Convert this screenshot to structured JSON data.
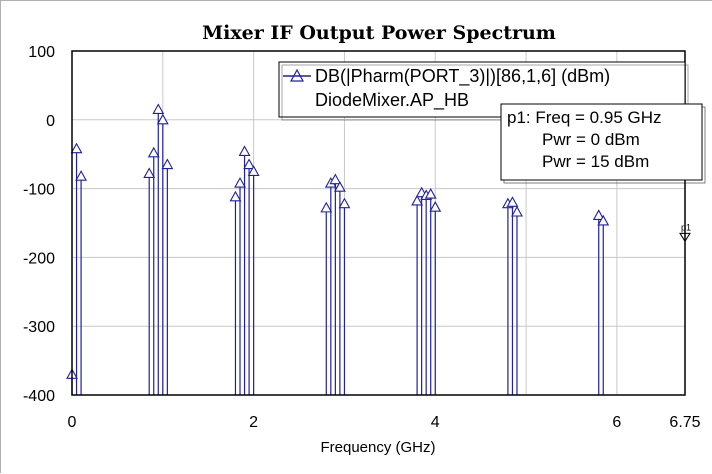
{
  "chart_data": {
    "type": "line",
    "title": "Mixer IF Output Power Spectrum",
    "xlabel": "Frequency (GHz)",
    "ylabel": "",
    "xlim": [
      0,
      6.75
    ],
    "ylim": [
      -400,
      100
    ],
    "x_ticks": [
      "0",
      "2",
      "4",
      "6",
      "6.75"
    ],
    "x_tick_values": [
      0,
      2,
      4,
      6,
      6.75
    ],
    "y_ticks": [
      "100",
      "0",
      "-100",
      "-200",
      "-300",
      "-400"
    ],
    "y_tick_values": [
      100,
      0,
      -100,
      -200,
      -300,
      -400
    ],
    "grid": true,
    "legend_position": "top-right",
    "series": [
      {
        "name": "DB(|Pharm(PORT_3)|)[86,1,6] (dBm)",
        "name_line2": "DiodeMixer.AP_HB",
        "color": "#1f1fa8",
        "style": "stem-with-triangle-markers",
        "x": [
          0.0,
          0.05,
          0.1,
          0.85,
          0.9,
          0.95,
          1.0,
          1.05,
          1.8,
          1.85,
          1.9,
          1.95,
          2.0,
          2.8,
          2.85,
          2.9,
          2.95,
          3.0,
          3.8,
          3.85,
          3.9,
          3.95,
          4.0,
          4.8,
          4.85,
          4.9,
          5.8,
          5.85
        ],
        "y": [
          -370,
          -42,
          -82,
          -78,
          -48,
          15,
          0,
          -65,
          -112,
          -92,
          -46,
          -65,
          -75,
          -128,
          -92,
          -87,
          -98,
          -122,
          -118,
          -106,
          -110,
          -108,
          -127,
          -122,
          -120,
          -134,
          -139,
          -147
        ]
      }
    ],
    "marker": {
      "label": "p1",
      "x": 6.75,
      "y": -165,
      "readout": [
        "p1: Freq = 0.95 GHz",
        "Pwr = 0 dBm",
        "Pwr = 15 dBm"
      ]
    }
  }
}
